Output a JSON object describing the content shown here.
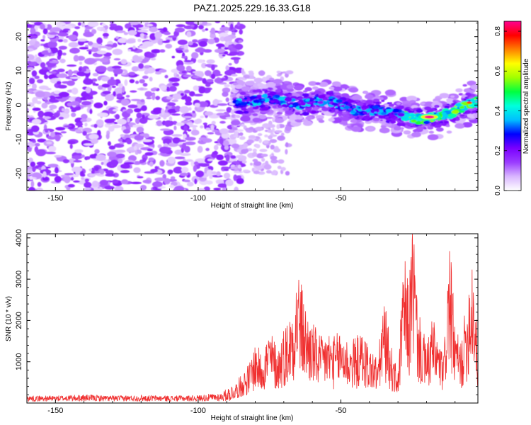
{
  "figure_title": "PAZ1.2025.229.16.33.G18",
  "chart_data": [
    {
      "type": "heatmap",
      "xlabel": "Height of straight line (km)",
      "ylabel": "Frequency (Hz)",
      "xlim": [
        -160,
        -2
      ],
      "ylim": [
        -25,
        24.5
      ],
      "xticks": [
        -150,
        -100,
        -50
      ],
      "yticks": [
        -20,
        -10,
        0,
        10,
        20
      ],
      "colorbar": {
        "label": "Normalized spectral amplitude",
        "range": [
          0,
          0.85
        ],
        "ticks": [
          0.0,
          0.2,
          0.4,
          0.6,
          0.8
        ],
        "colors": [
          "#ffffff",
          "#d9b6ff",
          "#9a3cff",
          "#7a00ff",
          "#0000ff",
          "#00bfff",
          "#00ffdd",
          "#00ff40",
          "#a0ff00",
          "#ffff00",
          "#ff8000",
          "#ff0000",
          "#ff0090"
        ]
      },
      "ridge": {
        "description_points_km_hz": [
          [
            -85,
            0.5
          ],
          [
            -75,
            2.0
          ],
          [
            -65,
            0.0
          ],
          [
            -55,
            1.5
          ],
          [
            -45,
            -1.5
          ],
          [
            -35,
            -1.5
          ],
          [
            -25,
            -4.0
          ],
          [
            -20,
            -4.0
          ],
          [
            -12,
            -2.5
          ],
          [
            -5,
            0.5
          ],
          [
            -2,
            1.0
          ]
        ],
        "peak_amplitude": 0.85,
        "peak_at": [
          -19,
          -3.5
        ]
      },
      "noise_region": {
        "x_range": [
          -160,
          -85
        ],
        "typical_amplitude": 0.1
      }
    },
    {
      "type": "line",
      "xlabel": "Height of straight line (km)",
      "ylabel": "SNR (10 * v/v)",
      "xlim": [
        -160,
        -2
      ],
      "ylim": [
        0,
        4100
      ],
      "xticks": [
        -150,
        -100,
        -50
      ],
      "yticks": [
        1000,
        2000,
        3000,
        4000
      ],
      "line_color": "#f03030",
      "series": [
        {
          "x": [
            -160,
            -150,
            -140,
            -130,
            -120,
            -110,
            -100,
            -92,
            -88,
            -85,
            -82,
            -80,
            -78,
            -75,
            -72,
            -70,
            -68,
            -65,
            -62,
            -60,
            -57,
            -55,
            -52,
            -50,
            -47,
            -45,
            -42,
            -40,
            -37,
            -35,
            -32,
            -30,
            -28,
            -26,
            -25,
            -23,
            -21,
            -20,
            -18,
            -16,
            -14,
            -12,
            -10,
            -8,
            -6,
            -4,
            -2
          ],
          "y": [
            100,
            100,
            120,
            100,
            110,
            100,
            110,
            150,
            300,
            550,
            800,
            1200,
            1000,
            1450,
            1100,
            1500,
            1700,
            2700,
            1800,
            1600,
            1300,
            1450,
            1300,
            1500,
            1200,
            1300,
            1400,
            1100,
            900,
            2100,
            1000,
            600,
            2900,
            2300,
            4050,
            1800,
            1400,
            1100,
            1700,
            1300,
            900,
            3300,
            1500,
            1200,
            2000,
            3200,
            1200
          ]
        }
      ]
    }
  ]
}
